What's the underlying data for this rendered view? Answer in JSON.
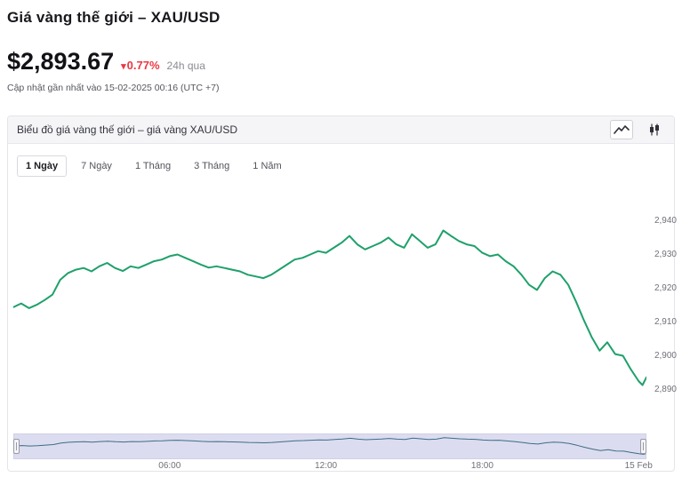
{
  "page": {
    "title": "Giá vàng thế giới – XAU/USD"
  },
  "price": {
    "value": "$2,893.67",
    "change_arrow": "▾",
    "change_percent": "0.77%",
    "change_direction": "down",
    "change_color": "#ea3943",
    "change_period": "24h qua",
    "updated_text": "Cập nhật gần nhất vào 15-02-2025 00:16 (UTC +7)"
  },
  "chart_panel": {
    "header": "Biểu đồ giá vàng thế giới – giá vàng XAU/USD",
    "icons": [
      {
        "name": "line-chart-icon",
        "selected": true
      },
      {
        "name": "candlestick-chart-icon",
        "selected": false
      }
    ],
    "range_tabs": [
      {
        "label": "1 Ngày",
        "active": true
      },
      {
        "label": "7 Ngày",
        "active": false
      },
      {
        "label": "1 Tháng",
        "active": false
      },
      {
        "label": "3 Tháng",
        "active": false
      },
      {
        "label": "1 Năm",
        "active": false
      }
    ]
  },
  "chart_data": {
    "type": "line",
    "title": "Giá vàng thế giới – XAU/USD (1 Ngày)",
    "series_name": "XAU/USD",
    "series_color": "#1fa06b",
    "grid": false,
    "y_axis_side": "right",
    "ylim": [
      2884,
      2945
    ],
    "y_ticks": [
      "2,940",
      "2,930",
      "2,920",
      "2,910",
      "2,900",
      "2,890"
    ],
    "x_hours_range": [
      0,
      24.3
    ],
    "x_ticks": [
      {
        "label": "06:00",
        "hour": 6
      },
      {
        "label": "12:00",
        "hour": 12
      },
      {
        "label": "18:00",
        "hour": 18
      },
      {
        "label": "15 Feb",
        "hour": 24
      }
    ],
    "points": [
      [
        0.0,
        2914.5
      ],
      [
        0.3,
        2915.6
      ],
      [
        0.6,
        2914.2
      ],
      [
        0.9,
        2915.2
      ],
      [
        1.2,
        2916.6
      ],
      [
        1.5,
        2918.2
      ],
      [
        1.8,
        2922.6
      ],
      [
        2.1,
        2924.6
      ],
      [
        2.4,
        2925.6
      ],
      [
        2.7,
        2926.1
      ],
      [
        3.0,
        2925.1
      ],
      [
        3.3,
        2926.6
      ],
      [
        3.6,
        2927.6
      ],
      [
        3.9,
        2926.1
      ],
      [
        4.2,
        2925.2
      ],
      [
        4.5,
        2926.6
      ],
      [
        4.8,
        2926.1
      ],
      [
        5.1,
        2927.1
      ],
      [
        5.4,
        2928.1
      ],
      [
        5.7,
        2928.6
      ],
      [
        6.0,
        2929.6
      ],
      [
        6.3,
        2930.1
      ],
      [
        6.6,
        2929.1
      ],
      [
        6.9,
        2928.1
      ],
      [
        7.2,
        2927.1
      ],
      [
        7.5,
        2926.2
      ],
      [
        7.8,
        2926.6
      ],
      [
        8.1,
        2926.1
      ],
      [
        8.4,
        2925.6
      ],
      [
        8.7,
        2925.1
      ],
      [
        9.0,
        2924.1
      ],
      [
        9.3,
        2923.6
      ],
      [
        9.6,
        2923.1
      ],
      [
        9.9,
        2924.1
      ],
      [
        10.2,
        2925.6
      ],
      [
        10.5,
        2927.1
      ],
      [
        10.8,
        2928.6
      ],
      [
        11.1,
        2929.1
      ],
      [
        11.4,
        2930.1
      ],
      [
        11.7,
        2931.1
      ],
      [
        12.0,
        2930.6
      ],
      [
        12.3,
        2932.1
      ],
      [
        12.6,
        2933.6
      ],
      [
        12.9,
        2935.6
      ],
      [
        13.2,
        2933.1
      ],
      [
        13.5,
        2931.6
      ],
      [
        13.8,
        2932.6
      ],
      [
        14.1,
        2933.6
      ],
      [
        14.4,
        2935.1
      ],
      [
        14.7,
        2933.1
      ],
      [
        15.0,
        2932.1
      ],
      [
        15.3,
        2936.1
      ],
      [
        15.6,
        2934.1
      ],
      [
        15.9,
        2932.1
      ],
      [
        16.2,
        2933.1
      ],
      [
        16.5,
        2937.2
      ],
      [
        16.8,
        2935.6
      ],
      [
        17.1,
        2934.1
      ],
      [
        17.4,
        2933.1
      ],
      [
        17.7,
        2932.6
      ],
      [
        18.0,
        2930.6
      ],
      [
        18.3,
        2929.6
      ],
      [
        18.6,
        2930.1
      ],
      [
        18.9,
        2928.1
      ],
      [
        19.2,
        2926.6
      ],
      [
        19.5,
        2924.1
      ],
      [
        19.8,
        2921.1
      ],
      [
        20.1,
        2919.6
      ],
      [
        20.4,
        2923.1
      ],
      [
        20.7,
        2925.1
      ],
      [
        21.0,
        2924.1
      ],
      [
        21.3,
        2921.1
      ],
      [
        21.6,
        2916.1
      ],
      [
        21.9,
        2910.6
      ],
      [
        22.2,
        2905.6
      ],
      [
        22.5,
        2901.6
      ],
      [
        22.8,
        2904.1
      ],
      [
        23.1,
        2900.6
      ],
      [
        23.4,
        2900.1
      ],
      [
        23.7,
        2896.1
      ],
      [
        24.0,
        2892.6
      ],
      [
        24.15,
        2891.4
      ],
      [
        24.3,
        2893.7
      ]
    ],
    "last_value": 2893.67
  }
}
